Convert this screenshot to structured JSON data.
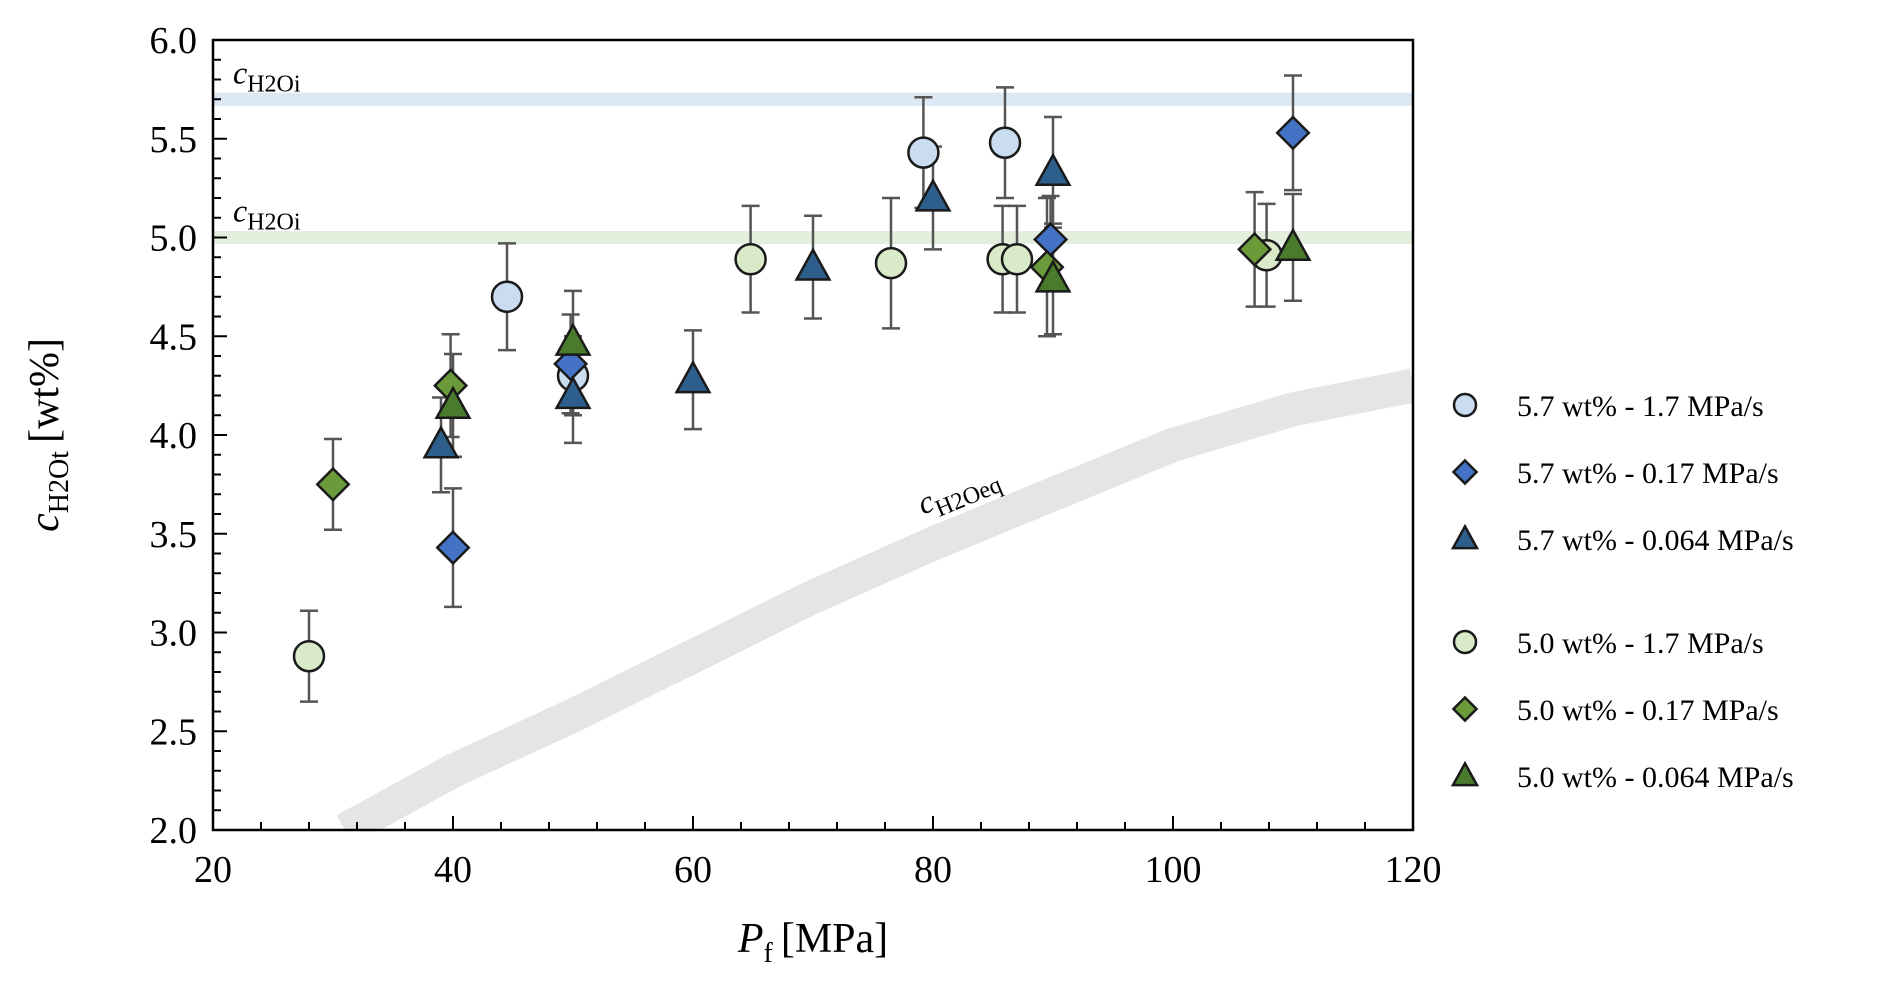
{
  "chart_data": {
    "type": "scatter",
    "title": "",
    "xlabel": {
      "symbol": "P",
      "sub": "f",
      "unit": "[MPa]"
    },
    "ylabel": {
      "symbol": "c",
      "sub": "H2Ot",
      "unit": "[wt%]"
    },
    "xlim": [
      20,
      120
    ],
    "ylim": [
      2.0,
      6.0
    ],
    "x_ticks": [
      20,
      40,
      60,
      80,
      100,
      120
    ],
    "y_ticks": [
      "2.0",
      "2.5",
      "3.0",
      "3.5",
      "4.0",
      "4.5",
      "5.0",
      "5.5",
      "6.0"
    ],
    "x_minor_step": 4,
    "y_minor_step": 0.1,
    "grid": false,
    "legend_position": "right",
    "reference_lines": [
      {
        "label_symbol": "c",
        "label_sub": "H2Oi",
        "y": 5.7,
        "color": "#dce8f4"
      },
      {
        "label_symbol": "c",
        "label_sub": "H2Oi",
        "y": 5.0,
        "color": "#e3efdc"
      }
    ],
    "equilibrium_band": {
      "label_symbol": "c",
      "label_sub": "H2Oeq",
      "color": "#e5e5e5",
      "x": [
        31,
        40,
        50,
        60,
        70,
        80,
        90,
        100,
        110,
        120
      ],
      "y": [
        2.0,
        2.3,
        2.58,
        2.88,
        3.18,
        3.45,
        3.7,
        3.95,
        4.13,
        4.25
      ]
    },
    "series": [
      {
        "name": "5.7 wt% - 1.7 MPa/s",
        "marker": "circle",
        "color": "#c9dcf0",
        "points": [
          {
            "x": 44.5,
            "y": 4.7,
            "err": 0.27
          },
          {
            "x": 50.0,
            "y": 4.3,
            "err": 0.2
          },
          {
            "x": 79.2,
            "y": 5.43,
            "err": 0.28
          },
          {
            "x": 86.0,
            "y": 5.48,
            "err": 0.28
          }
        ]
      },
      {
        "name": "5.7 wt% - 0.17 MPa/s",
        "marker": "diamond",
        "color": "#4472c4",
        "points": [
          {
            "x": 40.0,
            "y": 3.43,
            "err": 0.3
          },
          {
            "x": 49.8,
            "y": 4.36,
            "err": 0.25
          },
          {
            "x": 89.8,
            "y": 4.99,
            "err": 0.22
          },
          {
            "x": 110.0,
            "y": 5.53,
            "err": 0.29
          }
        ]
      },
      {
        "name": "5.7 wt% - 0.064 MPa/s",
        "marker": "triangle",
        "color": "#2e5f8c",
        "points": [
          {
            "x": 39.0,
            "y": 3.95,
            "err": 0.24
          },
          {
            "x": 50.0,
            "y": 4.2,
            "err": 0.24
          },
          {
            "x": 60.0,
            "y": 4.28,
            "err": 0.25
          },
          {
            "x": 70.0,
            "y": 4.85,
            "err": 0.26
          },
          {
            "x": 80.0,
            "y": 5.2,
            "err": 0.26
          },
          {
            "x": 90.0,
            "y": 5.33,
            "err": 0.28
          }
        ]
      },
      {
        "name": "5.0 wt% - 1.7 MPa/s",
        "marker": "circle",
        "color": "#d8eac8",
        "points": [
          {
            "x": 28.0,
            "y": 2.88,
            "err": 0.23
          },
          {
            "x": 64.8,
            "y": 4.89,
            "err": 0.27
          },
          {
            "x": 76.5,
            "y": 4.87,
            "err": 0.33
          },
          {
            "x": 85.8,
            "y": 4.89,
            "err": 0.27
          },
          {
            "x": 87.0,
            "y": 4.89,
            "err": 0.27
          },
          {
            "x": 107.8,
            "y": 4.91,
            "err": 0.26
          }
        ]
      },
      {
        "name": "5.0 wt% - 0.17 MPa/s",
        "marker": "diamond",
        "color": "#6a9a3a",
        "points": [
          {
            "x": 30.0,
            "y": 3.75,
            "err": 0.23
          },
          {
            "x": 39.8,
            "y": 4.25,
            "err": 0.26
          },
          {
            "x": 89.5,
            "y": 4.85,
            "err": 0.35
          },
          {
            "x": 106.8,
            "y": 4.94,
            "err": 0.29
          }
        ]
      },
      {
        "name": "5.0 wt% - 0.064 MPa/s",
        "marker": "triangle",
        "color": "#4a7a2c",
        "points": [
          {
            "x": 40.0,
            "y": 4.15,
            "err": 0.26
          },
          {
            "x": 50.0,
            "y": 4.47,
            "err": 0.26
          },
          {
            "x": 90.0,
            "y": 4.79,
            "err": 0.28
          },
          {
            "x": 110.0,
            "y": 4.95,
            "err": 0.27
          }
        ]
      }
    ]
  }
}
